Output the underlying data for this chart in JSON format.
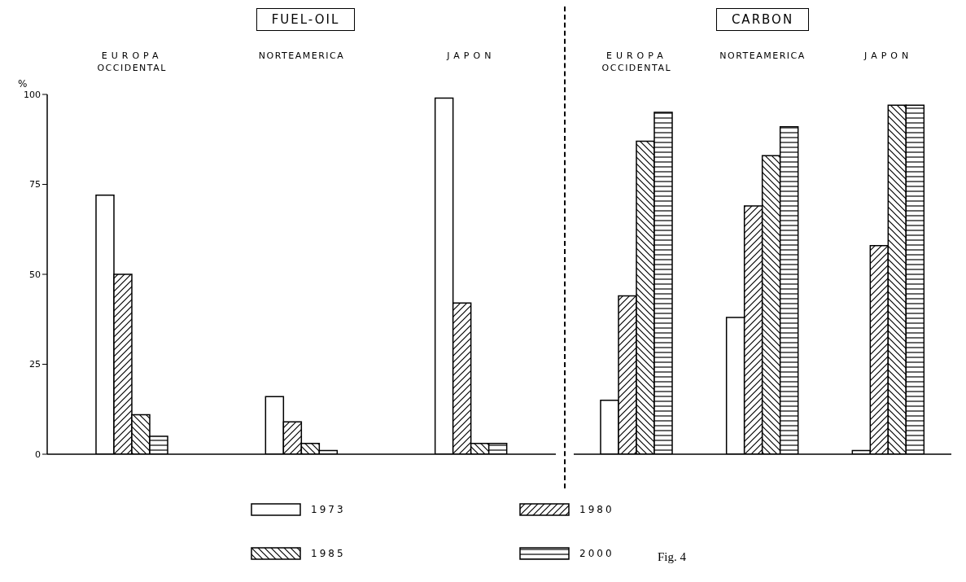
{
  "chart_data": [
    {
      "type": "bar",
      "title": "FUEL-OIL",
      "ylabel": "%",
      "categories": [
        "EUROPA OCCIDENTAL",
        "NORTEAMERICA",
        "JAPON"
      ],
      "ylim": [
        0,
        100
      ],
      "yticks": [
        0,
        25,
        50,
        75,
        100
      ],
      "legend": "bottom",
      "series": [
        {
          "name": "1973",
          "color": "#000000",
          "values": [
            72,
            16,
            99
          ]
        },
        {
          "name": "1980",
          "color": "#000000",
          "values": [
            50,
            9,
            42
          ]
        },
        {
          "name": "1985",
          "color": "#000000",
          "values": [
            11,
            3,
            3
          ]
        },
        {
          "name": "2000",
          "color": "#000000",
          "values": [
            5,
            1,
            3
          ]
        }
      ]
    },
    {
      "type": "bar",
      "title": "CARBON",
      "categories": [
        "EUROPA OCCIDENTAL",
        "NORTEAMERICA",
        "JAPON"
      ],
      "ylim": [
        0,
        100
      ],
      "yticks": [
        0,
        25,
        50,
        75,
        100
      ],
      "tick_labels": "x",
      "annotations": [
        "Fig. 4"
      ],
      "series": [
        {
          "color": "#000000",
          "values": [
            15,
            38,
            1
          ]
        },
        {
          "color": "#000000",
          "values": [
            44,
            69,
            58
          ]
        },
        {
          "color": "#000000",
          "values": [
            87,
            83,
            97
          ]
        },
        {
          "color": "#000000",
          "values": [
            95,
            91,
            97
          ]
        }
      ]
    }
  ]
}
